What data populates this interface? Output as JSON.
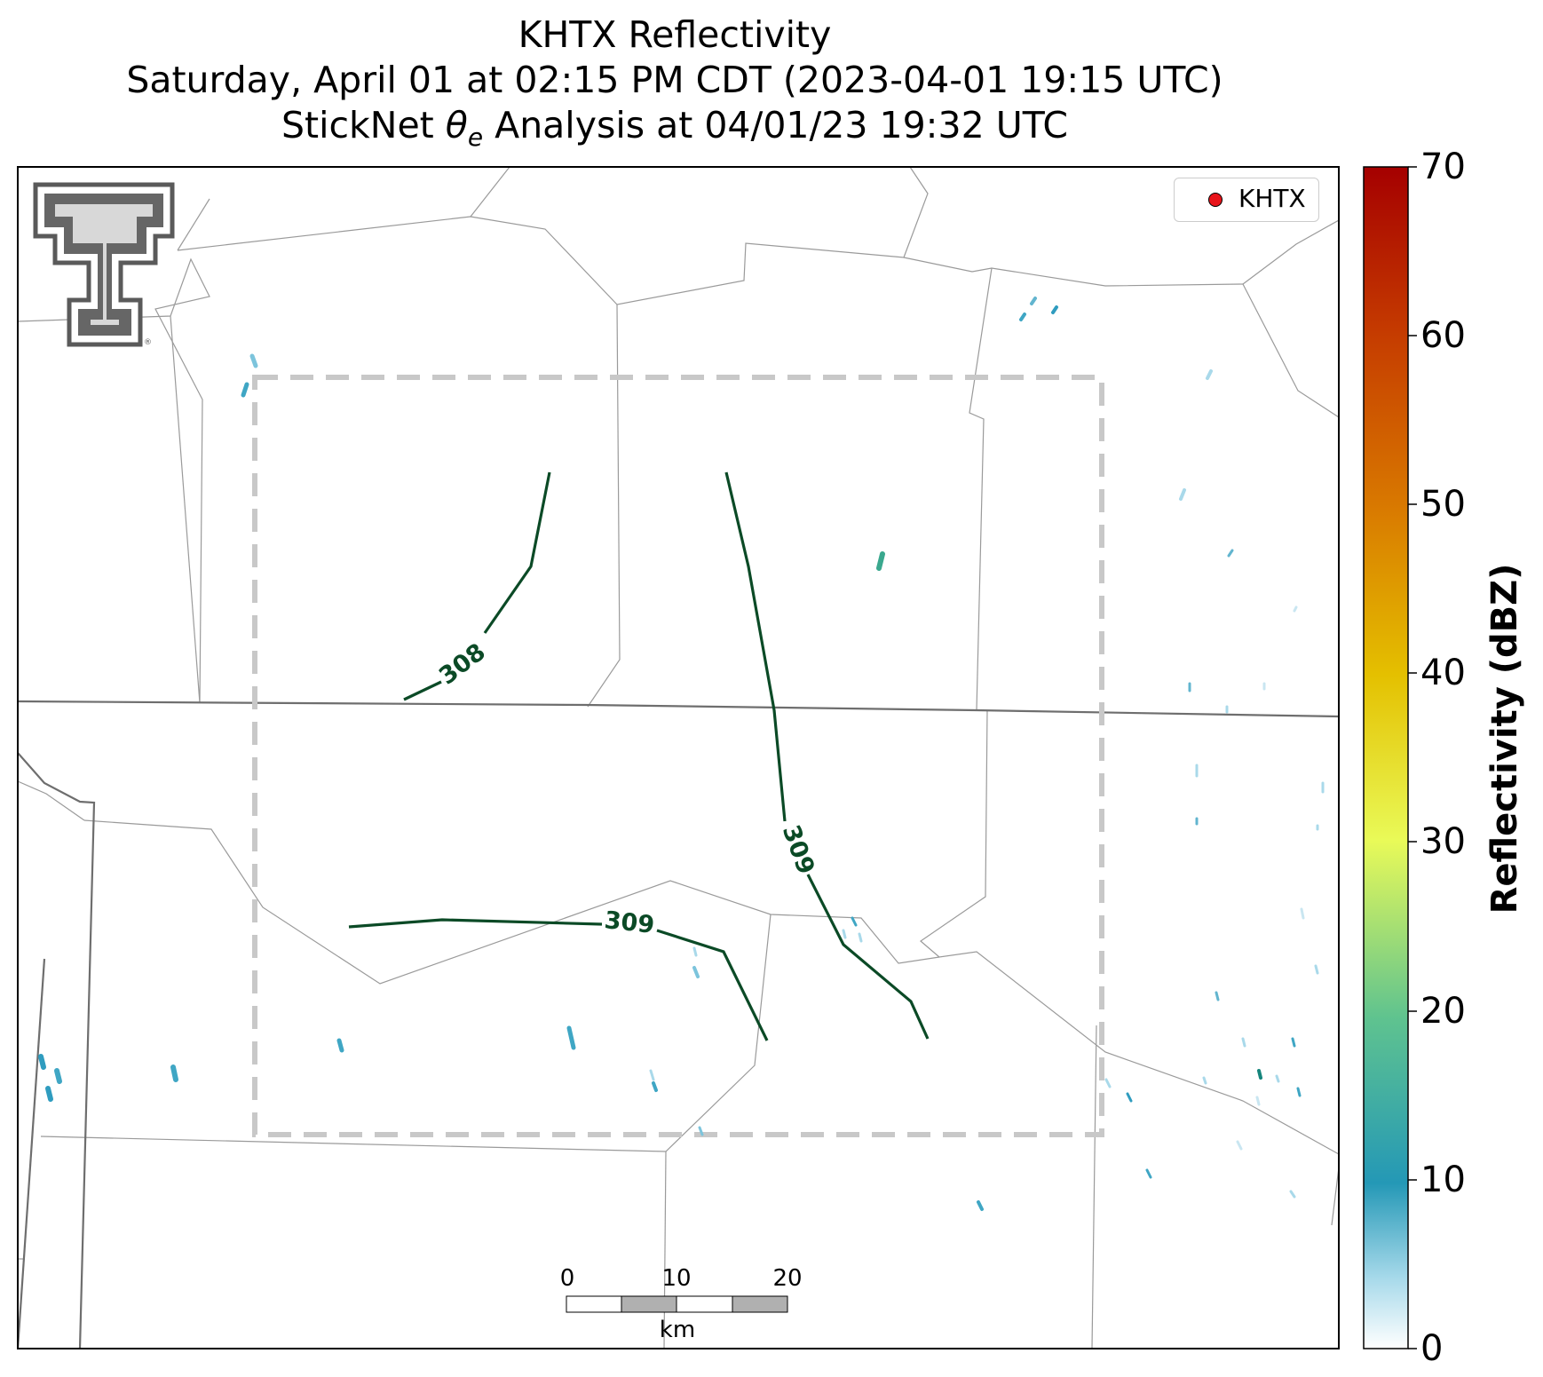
{
  "title": {
    "line1": "KHTX Reflectivity",
    "line2": "Saturday, April 01 at 02:15 PM CDT (2023-04-01 19:15 UTC)",
    "line3_prefix": "StickNet ",
    "line3_theta": "θ",
    "line3_sub": "e",
    "line3_suffix": " Analysis at 04/01/23 19:32 UTC"
  },
  "legend": {
    "label": "KHTX",
    "marker_color": "#e8141a"
  },
  "colorbar": {
    "label": "Reflectivity (dBZ)",
    "ticks": [
      "0",
      "10",
      "20",
      "30",
      "40",
      "50",
      "60",
      "70"
    ],
    "stops": [
      "#ffffff",
      "#a6d9ea",
      "#2498b6",
      "#5fc38f",
      "#e9fa58",
      "#e4c000",
      "#d97a00",
      "#c53b00",
      "#a50000"
    ]
  },
  "contours": [
    {
      "label": "308",
      "value": 308
    },
    {
      "label": "309",
      "value": 309
    },
    {
      "label": "309",
      "value": 309
    }
  ],
  "contour_color": "#0b4a26",
  "scalebar": {
    "ticks": [
      "0",
      "10",
      "20"
    ],
    "unit": "km"
  },
  "logo": {
    "name": "Texas Tech Double T",
    "color": "#5a5a5a"
  }
}
